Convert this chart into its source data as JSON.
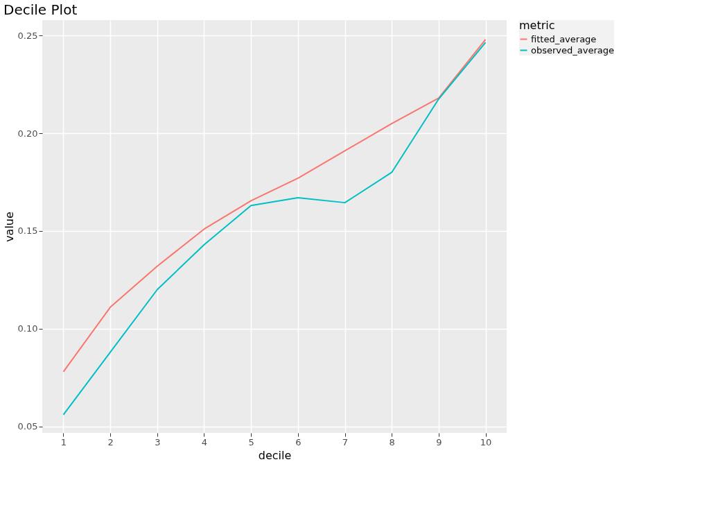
{
  "chart_data": {
    "type": "line",
    "title": "Decile Plot",
    "xlabel": "decile",
    "ylabel": "value",
    "legend_title": "metric",
    "x": [
      1,
      2,
      3,
      4,
      5,
      6,
      7,
      8,
      9,
      10
    ],
    "series": [
      {
        "name": "fitted_average",
        "color": "#f8766d",
        "values": [
          0.078,
          0.111,
          0.132,
          0.151,
          0.1655,
          0.177,
          0.191,
          0.205,
          0.218,
          0.248
        ]
      },
      {
        "name": "observed_average",
        "color": "#00bfc4",
        "values": [
          0.056,
          0.088,
          0.12,
          0.143,
          0.163,
          0.167,
          0.1645,
          0.18,
          0.2175,
          0.2465
        ]
      }
    ],
    "xlim": [
      0.55,
      10.45
    ],
    "xticks": [
      1,
      2,
      3,
      4,
      5,
      6,
      7,
      8,
      9,
      10
    ],
    "ylim": [
      0.0467,
      0.2579
    ],
    "yticks": [
      {
        "value": 0.05,
        "label": "0.05"
      },
      {
        "value": 0.1,
        "label": "0.10"
      },
      {
        "value": 0.15,
        "label": "0.15"
      },
      {
        "value": 0.2,
        "label": "0.20"
      },
      {
        "value": 0.25,
        "label": "0.25"
      }
    ],
    "grid": true,
    "legend": "right",
    "line_style": "solid",
    "marker": "none"
  }
}
